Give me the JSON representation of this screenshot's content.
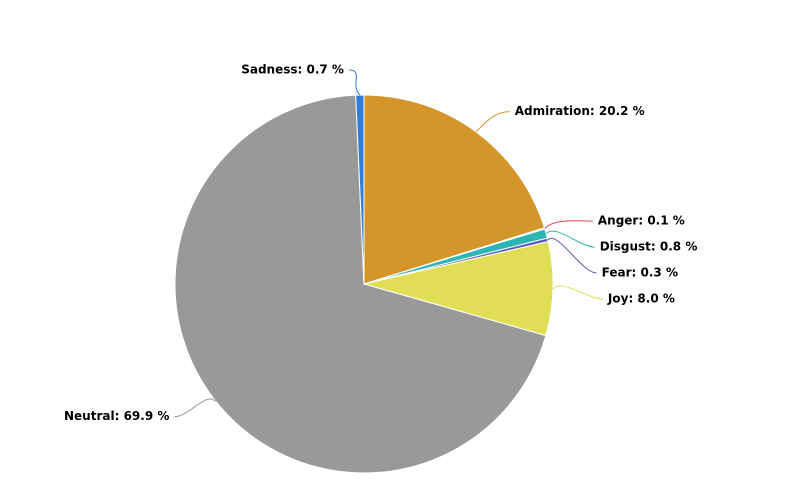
{
  "chart_data": {
    "type": "pie",
    "categories": [
      null,
      null,
      null,
      null,
      null,
      null,
      null
    ],
    "values": [
      20.2,
      0.1,
      0.8,
      0.3,
      8.0,
      69.9,
      0.7
    ],
    "value_labels": [
      "Admiration: 20.2 %",
      "Anger: 0.1 %",
      "Disgust: 0.8 %",
      "Fear: 0.3 %",
      "Joy: 8.0 %",
      "Neutral: 69.9 %",
      "Sadness: 0.7 %"
    ],
    "colors": [
      "#d4962a",
      "#e0454f",
      "#2bb5b5",
      "#5a5ab8",
      "#e0de55",
      "#999999",
      "#2f7ed8"
    ]
  }
}
